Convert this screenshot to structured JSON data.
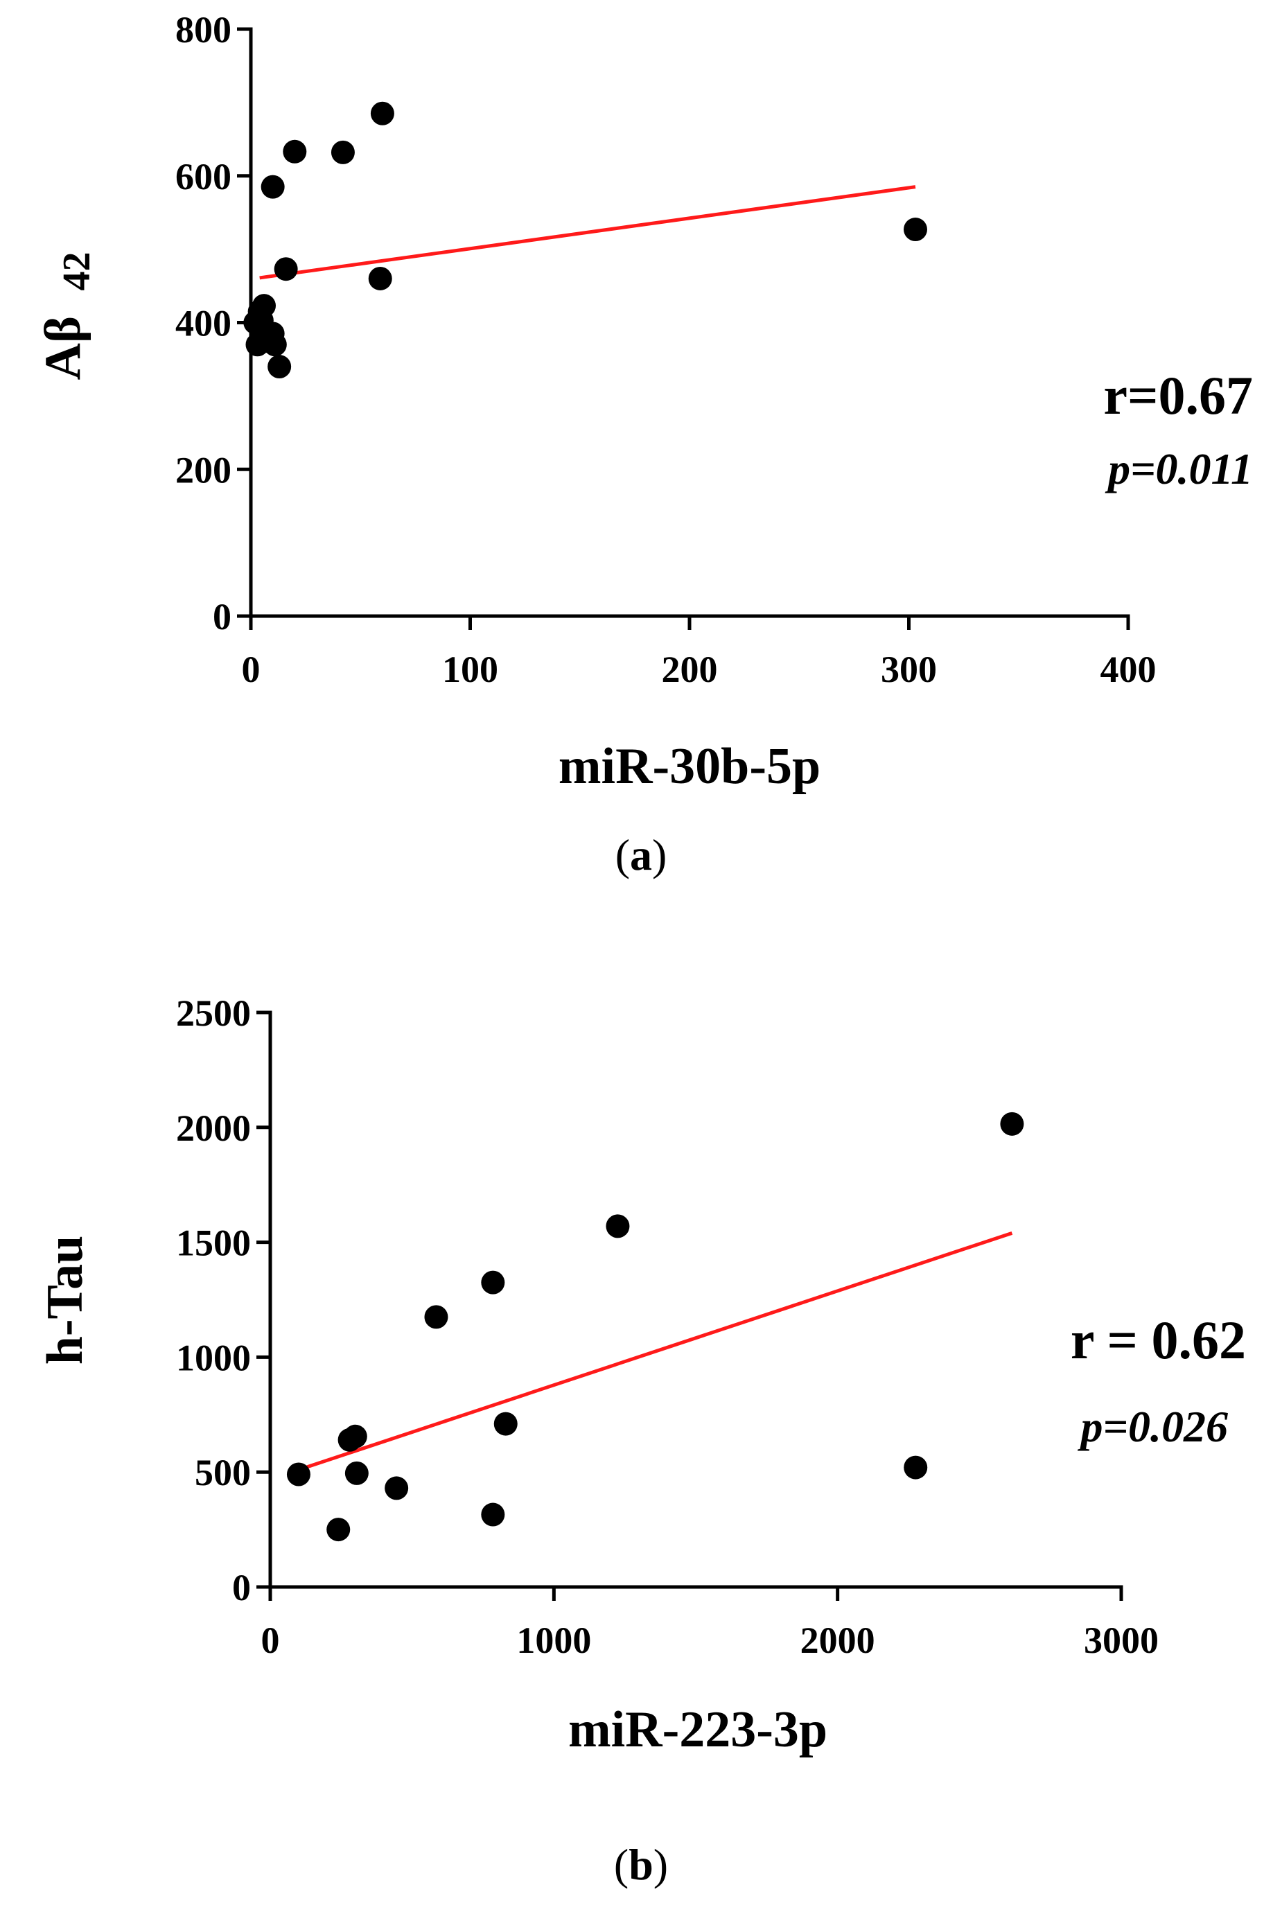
{
  "chart_data": [
    {
      "type": "scatter",
      "panel_label": "a",
      "title": "",
      "xlabel": "miR-30b-5p",
      "ylabel_main": "Aβ",
      "ylabel_sub": "42",
      "xlim": [
        0,
        400
      ],
      "ylim": [
        0,
        800
      ],
      "x_ticks": [
        0,
        100,
        200,
        300,
        400
      ],
      "y_ticks": [
        0,
        200,
        400,
        600,
        800
      ],
      "points": [
        {
          "x": 2,
          "y": 400
        },
        {
          "x": 3,
          "y": 370
        },
        {
          "x": 4,
          "y": 415
        },
        {
          "x": 5,
          "y": 403
        },
        {
          "x": 6,
          "y": 423
        },
        {
          "x": 7,
          "y": 375
        },
        {
          "x": 10,
          "y": 385
        },
        {
          "x": 10,
          "y": 585
        },
        {
          "x": 11,
          "y": 370
        },
        {
          "x": 13,
          "y": 340
        },
        {
          "x": 16,
          "y": 473
        },
        {
          "x": 20,
          "y": 633
        },
        {
          "x": 42,
          "y": 632
        },
        {
          "x": 59,
          "y": 460
        },
        {
          "x": 60,
          "y": 685
        },
        {
          "x": 303,
          "y": 527
        }
      ],
      "fit_line": {
        "x": [
          4,
          303
        ],
        "y": [
          461,
          585
        ],
        "color": "#ff1a1a"
      },
      "stat_r": "r=0.67",
      "stat_p": "p=0.011",
      "grid": false,
      "legend": "none"
    },
    {
      "type": "scatter",
      "panel_label": "b",
      "title": "",
      "xlabel": "miR-223-3p",
      "ylabel_main": "h-Tau",
      "xlim": [
        0,
        3000
      ],
      "ylim": [
        0,
        2500
      ],
      "x_ticks": [
        0,
        1000,
        2000,
        3000
      ],
      "y_ticks": [
        0,
        500,
        1000,
        1500,
        2000,
        2500
      ],
      "points": [
        {
          "x": 100,
          "y": 490
        },
        {
          "x": 240,
          "y": 250
        },
        {
          "x": 280,
          "y": 640
        },
        {
          "x": 300,
          "y": 655
        },
        {
          "x": 305,
          "y": 495
        },
        {
          "x": 445,
          "y": 430
        },
        {
          "x": 585,
          "y": 1175
        },
        {
          "x": 785,
          "y": 1325
        },
        {
          "x": 785,
          "y": 315
        },
        {
          "x": 830,
          "y": 710
        },
        {
          "x": 1225,
          "y": 1570
        },
        {
          "x": 2275,
          "y": 520
        },
        {
          "x": 2615,
          "y": 2015
        }
      ],
      "fit_line": {
        "x": [
          100,
          2615
        ],
        "y": [
          510,
          1540
        ],
        "color": "#ff1a1a"
      },
      "stat_r": "r = 0.62",
      "stat_p": "p=0.026",
      "grid": false,
      "legend": "none"
    }
  ]
}
